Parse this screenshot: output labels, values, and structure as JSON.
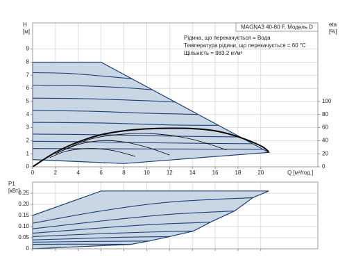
{
  "chart_data": [
    {
      "type": "line",
      "title": "MAGNA3 40-80 F, Модель D",
      "annotations": [
        "Рідина, що перекачується = Вода",
        "Температура рідини, що перекачується = 60 °C",
        "Щільність = 983.2 кг/м³"
      ],
      "ylabel": [
        "H",
        "[м]"
      ],
      "y2label": [
        "eta",
        "[%]"
      ],
      "xlabel": "Q [м³/год.]",
      "xlim": [
        0,
        25
      ],
      "ylim": [
        0,
        11
      ],
      "y2lim": [
        0,
        220
      ],
      "xticks": [
        0,
        2,
        4,
        6,
        8,
        10,
        12,
        14,
        16,
        18,
        20
      ],
      "yticks": [
        0,
        1,
        2,
        3,
        4,
        5,
        6,
        7,
        8,
        9
      ],
      "y2ticks": [
        0,
        20,
        40,
        60,
        80,
        100
      ],
      "grid": true,
      "envelope": {
        "color": "#c9d6e4",
        "x": [
          0,
          6,
          20.7,
          8,
          0
        ],
        "values": [
          8,
          8,
          1.1,
          0.25,
          0.55
        ]
      },
      "series": [
        {
          "color": "#1c3f78",
          "x": [
            0,
            3,
            6,
            8.7
          ],
          "values": [
            7.2,
            7.15,
            6.95,
            6.73
          ]
        },
        {
          "color": "#1c3f78",
          "x": [
            0,
            4,
            8,
            10.5
          ],
          "values": [
            6.25,
            6.2,
            6.05,
            5.89
          ]
        },
        {
          "color": "#1c3f78",
          "x": [
            0,
            5,
            10,
            12.5
          ],
          "values": [
            5.25,
            5.2,
            5.05,
            4.95
          ]
        },
        {
          "color": "#1c3f78",
          "x": [
            0,
            5,
            10,
            14.5
          ],
          "values": [
            4.3,
            4.25,
            4.1,
            4.0
          ]
        },
        {
          "color": "#1c3f78",
          "x": [
            0,
            6,
            12,
            16.3
          ],
          "values": [
            3.4,
            3.35,
            3.2,
            3.17
          ]
        },
        {
          "color": "#1c3f78",
          "x": [
            0,
            6,
            12,
            18.2
          ],
          "values": [
            2.5,
            2.45,
            2.35,
            2.28
          ]
        },
        {
          "color": "#1c3f78",
          "x": [
            0,
            6,
            12,
            19.3
          ],
          "values": [
            1.95,
            1.9,
            1.82,
            1.76
          ]
        },
        {
          "color": "#1c3f78",
          "x": [
            0,
            6,
            12,
            20.2
          ],
          "values": [
            1.4,
            1.38,
            1.36,
            1.34
          ]
        },
        {
          "color": "#000000",
          "axis": "y2",
          "x": [
            2,
            5,
            8,
            11,
            14,
            17
          ],
          "values": [
            20,
            42,
            50,
            50,
            42,
            26
          ]
        },
        {
          "color": "#000000",
          "axis": "y2",
          "x": [
            2,
            4,
            6,
            8,
            10,
            12
          ],
          "values": [
            20,
            34,
            40,
            38,
            30,
            18
          ]
        },
        {
          "color": "#000000",
          "axis": "y2",
          "x": [
            1.5,
            3,
            5,
            7,
            9
          ],
          "values": [
            14,
            24,
            28,
            25,
            16
          ]
        },
        {
          "color": "#000000",
          "axis": "y2",
          "x": [
            0,
            2,
            4,
            6,
            8,
            10,
            12,
            14,
            16,
            18,
            20,
            20.7
          ],
          "values": [
            0,
            22,
            38,
            49,
            55,
            58,
            59,
            58.5,
            55,
            46,
            32,
            23
          ]
        }
      ]
    },
    {
      "type": "line",
      "ylabel": [
        "P1",
        "[кВт]"
      ],
      "xlim": [
        0,
        25
      ],
      "ylim": [
        0,
        0.3
      ],
      "yticks": [
        0,
        0.05,
        {
          "value": 0.1,
          "label": "0.10"
        },
        0.15,
        {
          "value": 0.2,
          "label": "0.20"
        },
        0.25
      ],
      "grid": true,
      "envelope": {
        "color": "#c9d6e4",
        "x": [
          0,
          6,
          20.7,
          19.3,
          17.7,
          15.6,
          14.1,
          12,
          10.2,
          8.6,
          0
        ],
        "values": [
          0.15,
          0.26,
          0.26,
          0.23,
          0.17,
          0.12,
          0.08,
          0.055,
          0.035,
          0.02,
          0
        ]
      },
      "series": [
        {
          "color": "#1c3f78",
          "x": [
            0,
            6,
            12,
            19.3
          ],
          "values": [
            0.115,
            0.17,
            0.21,
            0.23
          ]
        },
        {
          "color": "#1c3f78",
          "x": [
            0,
            6,
            12,
            17.7
          ],
          "values": [
            0.09,
            0.125,
            0.155,
            0.17
          ]
        },
        {
          "color": "#1c3f78",
          "x": [
            0,
            5,
            10,
            15.6
          ],
          "values": [
            0.07,
            0.09,
            0.108,
            0.12
          ]
        },
        {
          "color": "#1c3f78",
          "x": [
            0,
            5,
            10,
            14.1
          ],
          "values": [
            0.055,
            0.066,
            0.075,
            0.08
          ]
        },
        {
          "color": "#1c3f78",
          "x": [
            0,
            4,
            8,
            12
          ],
          "values": [
            0.04,
            0.046,
            0.052,
            0.055
          ]
        },
        {
          "color": "#1c3f78",
          "x": [
            0,
            5,
            10.2
          ],
          "values": [
            0.03,
            0.033,
            0.035
          ]
        },
        {
          "color": "#1c3f78",
          "x": [
            0,
            4,
            8.6
          ],
          "values": [
            0.02,
            0.021,
            0.02
          ]
        }
      ]
    }
  ]
}
